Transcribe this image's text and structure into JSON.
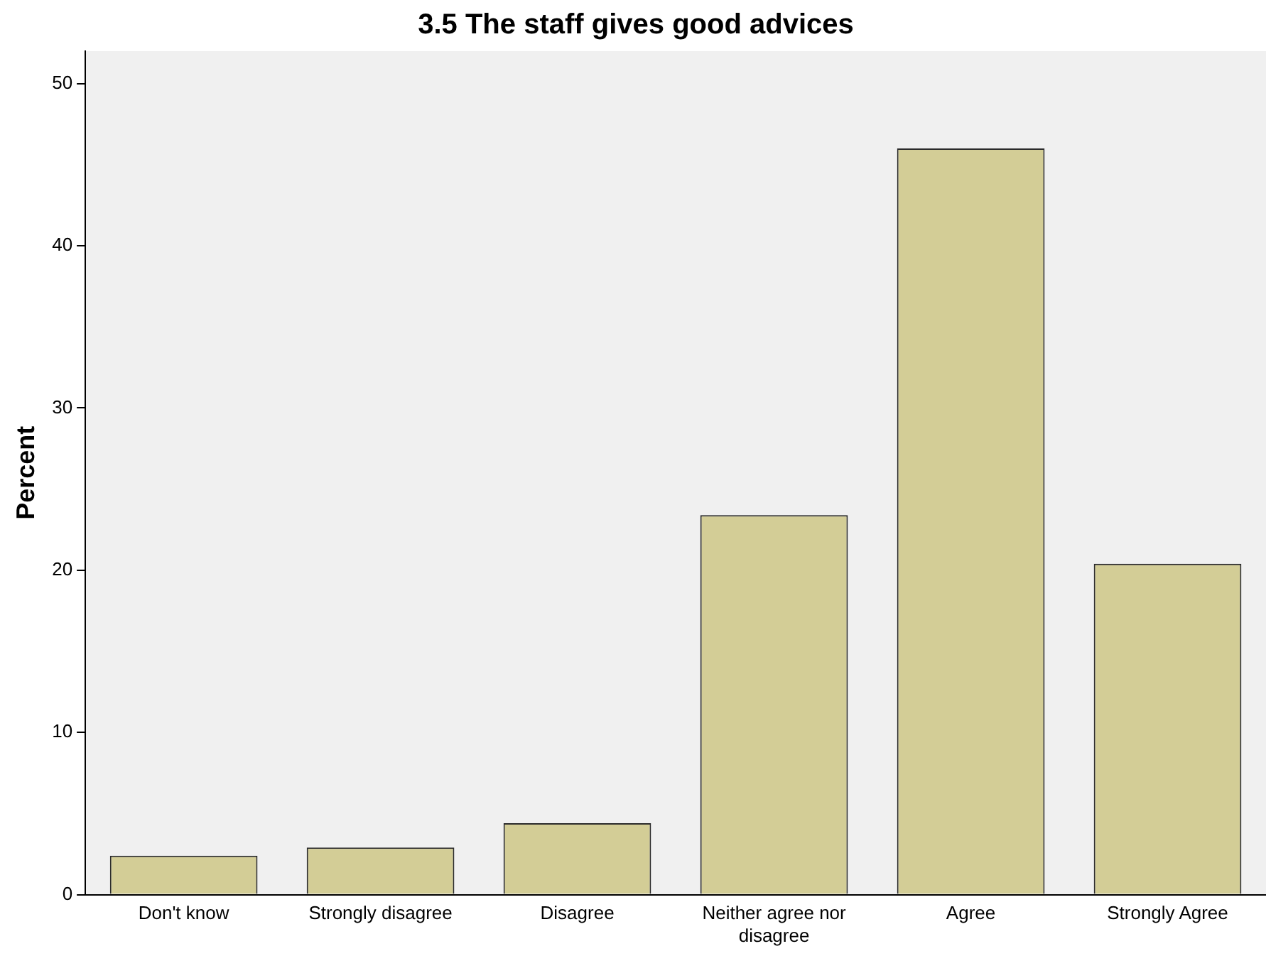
{
  "chart_data": {
    "type": "bar",
    "title": "3.5 The staff gives good advices",
    "ylabel": "Percent",
    "categories": [
      "Don't know",
      "Strongly disagree",
      "Disagree",
      "Neither agree nor disagree",
      "Agree",
      "Strongly Agree"
    ],
    "values": [
      2.4,
      2.9,
      4.4,
      23.4,
      46.0,
      20.4
    ],
    "color": "#d3cd96",
    "ylim": [
      0,
      52
    ],
    "yticks": [
      0,
      10,
      20,
      30,
      40,
      50
    ],
    "grid": false,
    "legend": false
  }
}
